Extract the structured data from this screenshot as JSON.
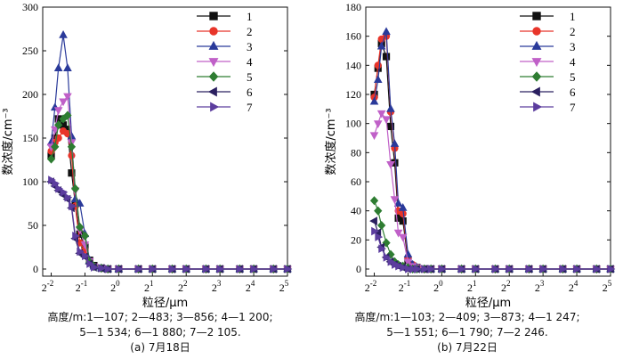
{
  "chart_data": [
    {
      "type": "line",
      "panel_label": "(a) 7月18日",
      "caption": [
        "高度/m:1—107;  2—483;  3—856;  4—1 200;",
        "5—1 534;  6—1 880;  7—2 105."
      ],
      "xlabel": "粒径/μm",
      "ylabel": "数浓度/cm⁻³",
      "xscale": "log2",
      "xlim": [
        0.21,
        32
      ],
      "ylim": [
        0,
        300
      ],
      "yticks": [
        0,
        50,
        100,
        150,
        200,
        250,
        300
      ],
      "xticks": [
        {
          "base": "2",
          "exp": "-2"
        },
        {
          "base": "2",
          "exp": "-1"
        },
        {
          "base": "2",
          "exp": "0"
        },
        {
          "base": "2",
          "exp": "1"
        },
        {
          "base": "2",
          "exp": "2"
        },
        {
          "base": "2",
          "exp": "3"
        },
        {
          "base": "2",
          "exp": "4"
        },
        {
          "base": "2",
          "exp": "5"
        }
      ],
      "legend_position": "top-right",
      "series": [
        {
          "name": "1",
          "color": "#111111",
          "marker": "square",
          "x": [
            0.25,
            0.27,
            0.29,
            0.32,
            0.35,
            0.38,
            0.41,
            0.45,
            0.5,
            0.55,
            0.6,
            0.7,
            0.8,
            1,
            1.5,
            2,
            3,
            4,
            6,
            8,
            12,
            16,
            24,
            32
          ],
          "y": [
            130,
            150,
            172,
            165,
            160,
            110,
            75,
            40,
            25,
            10,
            4,
            1,
            0,
            0,
            0,
            0,
            0,
            0,
            0,
            0,
            0,
            0,
            0,
            0
          ]
        },
        {
          "name": "2",
          "color": "#e8352a",
          "marker": "circle",
          "x": [
            0.25,
            0.27,
            0.29,
            0.32,
            0.35,
            0.38,
            0.41,
            0.45,
            0.5,
            0.55,
            0.6,
            0.7,
            0.8,
            1,
            1.5,
            2,
            3,
            4,
            6,
            8,
            12,
            16,
            24,
            32
          ],
          "y": [
            135,
            145,
            150,
            158,
            155,
            130,
            72,
            30,
            22,
            8,
            3,
            1,
            0,
            0,
            0,
            0,
            0,
            0,
            0,
            0,
            0,
            0,
            0,
            0
          ]
        },
        {
          "name": "3",
          "color": "#2a3a9a",
          "marker": "triangle-up",
          "x": [
            0.25,
            0.27,
            0.29,
            0.32,
            0.35,
            0.38,
            0.41,
            0.45,
            0.5,
            0.55,
            0.6,
            0.7,
            0.8,
            1,
            1.5,
            2,
            3,
            4,
            6,
            8,
            12,
            16,
            24,
            32
          ],
          "y": [
            145,
            185,
            230,
            268,
            230,
            152,
            80,
            75,
            40,
            10,
            3,
            1,
            0,
            0,
            0,
            0,
            0,
            0,
            0,
            0,
            0,
            0,
            0,
            0
          ]
        },
        {
          "name": "4",
          "color": "#c060c8",
          "marker": "triangle-down",
          "x": [
            0.25,
            0.27,
            0.29,
            0.32,
            0.35,
            0.38,
            0.41,
            0.45,
            0.5,
            0.55,
            0.6,
            0.7,
            0.8,
            1,
            1.5,
            2,
            3,
            4,
            6,
            8,
            12,
            16,
            24,
            32
          ],
          "y": [
            140,
            160,
            182,
            192,
            198,
            145,
            90,
            45,
            28,
            9,
            3,
            1,
            0,
            0,
            0,
            0,
            0,
            0,
            0,
            0,
            0,
            0,
            0,
            0
          ]
        },
        {
          "name": "5",
          "color": "#2e7d32",
          "marker": "diamond",
          "x": [
            0.25,
            0.27,
            0.29,
            0.32,
            0.35,
            0.38,
            0.41,
            0.45,
            0.5,
            0.55,
            0.6,
            0.7,
            0.8,
            1,
            1.5,
            2,
            3,
            4,
            6,
            8,
            12,
            16,
            24,
            32
          ],
          "y": [
            126,
            140,
            165,
            172,
            176,
            140,
            92,
            48,
            38,
            8,
            3,
            1,
            0,
            0,
            0,
            0,
            0,
            0,
            0,
            0,
            0,
            0,
            0,
            0
          ]
        },
        {
          "name": "6",
          "color": "#2b2060",
          "marker": "triangle-left",
          "x": [
            0.25,
            0.27,
            0.29,
            0.32,
            0.35,
            0.38,
            0.41,
            0.45,
            0.5,
            0.55,
            0.6,
            0.7,
            0.8,
            1,
            1.5,
            2,
            3,
            4,
            6,
            8,
            12,
            16,
            24,
            32
          ],
          "y": [
            100,
            95,
            90,
            85,
            80,
            70,
            35,
            18,
            14,
            6,
            2,
            1,
            0,
            0,
            0,
            0,
            0,
            0,
            0,
            0,
            0,
            0,
            0,
            0
          ]
        },
        {
          "name": "7",
          "color": "#5c3d9e",
          "marker": "triangle-right",
          "x": [
            0.25,
            0.27,
            0.29,
            0.32,
            0.35,
            0.38,
            0.41,
            0.45,
            0.5,
            0.55,
            0.6,
            0.7,
            0.8,
            1,
            1.5,
            2,
            3,
            4,
            6,
            8,
            12,
            16,
            24,
            32
          ],
          "y": [
            102,
            98,
            92,
            88,
            82,
            72,
            38,
            20,
            15,
            6,
            2,
            1,
            0,
            0,
            0,
            0,
            0,
            0,
            0,
            0,
            0,
            0,
            0,
            0
          ]
        }
      ]
    },
    {
      "type": "line",
      "panel_label": "(b) 7月22日",
      "caption": [
        "高度/m:1—103;  2—409;  3—873;  4—1 247;",
        "5—1 551;  6—1 790;  7—2 246."
      ],
      "xlabel": "粒径/μm",
      "ylabel": "数浓度/cm⁻³",
      "xscale": "log2",
      "xlim": [
        0.21,
        32
      ],
      "ylim": [
        0,
        180
      ],
      "yticks": [
        0,
        20,
        40,
        60,
        80,
        100,
        120,
        140,
        160,
        180
      ],
      "xticks": [
        {
          "base": "2",
          "exp": "-2"
        },
        {
          "base": "2",
          "exp": "-1"
        },
        {
          "base": "2",
          "exp": "0"
        },
        {
          "base": "2",
          "exp": "1"
        },
        {
          "base": "2",
          "exp": "2"
        },
        {
          "base": "2",
          "exp": "3"
        },
        {
          "base": "2",
          "exp": "4"
        },
        {
          "base": "2",
          "exp": "5"
        }
      ],
      "legend_position": "top-right",
      "series": [
        {
          "name": "1",
          "color": "#111111",
          "marker": "square",
          "x": [
            0.25,
            0.27,
            0.29,
            0.32,
            0.35,
            0.38,
            0.41,
            0.45,
            0.5,
            0.55,
            0.6,
            0.7,
            0.8,
            1,
            1.5,
            2,
            3,
            4,
            6,
            8,
            12,
            16,
            24,
            32
          ],
          "y": [
            120,
            138,
            155,
            146,
            98,
            73,
            35,
            33,
            6,
            2,
            1,
            0,
            0,
            0,
            0,
            0,
            0,
            0,
            0,
            0,
            0,
            0,
            0,
            0
          ]
        },
        {
          "name": "2",
          "color": "#e8352a",
          "marker": "circle",
          "x": [
            0.25,
            0.27,
            0.29,
            0.32,
            0.35,
            0.38,
            0.41,
            0.45,
            0.5,
            0.55,
            0.6,
            0.7,
            0.8,
            1,
            1.5,
            2,
            3,
            4,
            6,
            8,
            12,
            16,
            24,
            32
          ],
          "y": [
            118,
            140,
            158,
            160,
            108,
            83,
            40,
            38,
            8,
            3,
            1,
            0,
            0,
            0,
            0,
            0,
            0,
            0,
            0,
            0,
            0,
            0,
            0,
            0
          ]
        },
        {
          "name": "3",
          "color": "#2a3a9a",
          "marker": "triangle-up",
          "x": [
            0.25,
            0.27,
            0.29,
            0.32,
            0.35,
            0.38,
            0.41,
            0.45,
            0.5,
            0.55,
            0.6,
            0.7,
            0.8,
            1,
            1.5,
            2,
            3,
            4,
            6,
            8,
            12,
            16,
            24,
            32
          ],
          "y": [
            115,
            130,
            153,
            163,
            110,
            86,
            45,
            42,
            10,
            3,
            1,
            0,
            0,
            0,
            0,
            0,
            0,
            0,
            0,
            0,
            0,
            0,
            0,
            0
          ]
        },
        {
          "name": "4",
          "color": "#c060c8",
          "marker": "triangle-down",
          "x": [
            0.25,
            0.27,
            0.29,
            0.32,
            0.35,
            0.38,
            0.41,
            0.45,
            0.5,
            0.55,
            0.6,
            0.7,
            0.8,
            1,
            1.5,
            2,
            3,
            4,
            6,
            8,
            12,
            16,
            24,
            32
          ],
          "y": [
            92,
            100,
            107,
            103,
            72,
            48,
            25,
            22,
            5,
            2,
            1,
            0,
            0,
            0,
            0,
            0,
            0,
            0,
            0,
            0,
            0,
            0,
            0,
            0
          ]
        },
        {
          "name": "5",
          "color": "#2e7d32",
          "marker": "diamond",
          "x": [
            0.25,
            0.27,
            0.29,
            0.32,
            0.35,
            0.38,
            0.41,
            0.45,
            0.5,
            0.55,
            0.6,
            0.7,
            0.8,
            1,
            1.5,
            2,
            3,
            4,
            6,
            8,
            12,
            16,
            24,
            32
          ],
          "y": [
            47,
            40,
            30,
            18,
            10,
            5,
            3,
            2,
            1,
            0,
            0,
            0,
            0,
            0,
            0,
            0,
            0,
            0,
            0,
            0,
            0,
            0,
            0,
            0
          ]
        },
        {
          "name": "6",
          "color": "#2b2060",
          "marker": "triangle-left",
          "x": [
            0.25,
            0.27,
            0.29,
            0.32,
            0.35,
            0.38,
            0.41,
            0.45,
            0.5,
            0.55,
            0.6,
            0.7,
            0.8,
            1,
            1.5,
            2,
            3,
            4,
            6,
            8,
            12,
            16,
            24,
            32
          ],
          "y": [
            33,
            25,
            15,
            8,
            5,
            3,
            2,
            1,
            0,
            0,
            0,
            0,
            0,
            0,
            0,
            0,
            0,
            0,
            0,
            0,
            0,
            0,
            0,
            0
          ]
        },
        {
          "name": "7",
          "color": "#5c3d9e",
          "marker": "triangle-right",
          "x": [
            0.25,
            0.27,
            0.29,
            0.32,
            0.35,
            0.38,
            0.41,
            0.45,
            0.5,
            0.55,
            0.6,
            0.7,
            0.8,
            1,
            1.5,
            2,
            3,
            4,
            6,
            8,
            12,
            16,
            24,
            32
          ],
          "y": [
            26,
            22,
            14,
            8,
            5,
            3,
            2,
            1,
            0,
            0,
            0,
            0,
            0,
            0,
            0,
            0,
            0,
            0,
            0,
            0,
            0,
            0,
            0,
            0
          ]
        }
      ]
    }
  ]
}
